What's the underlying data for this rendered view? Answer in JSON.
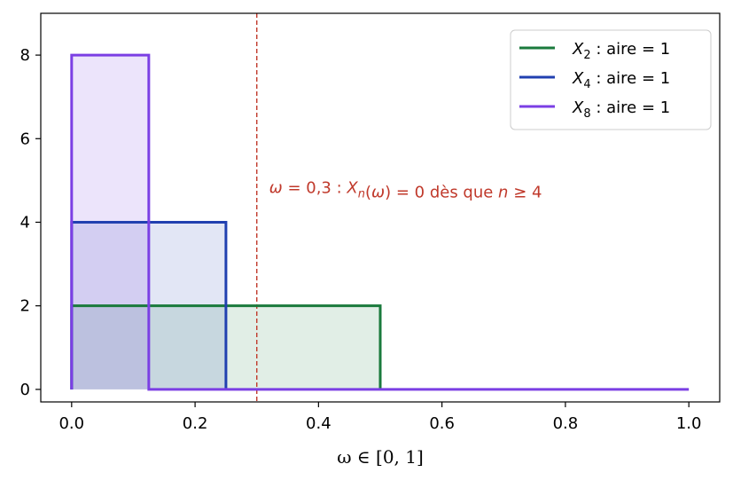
{
  "chart_data": {
    "type": "line",
    "title": "",
    "xlabel": "ω ∈ [0, 1]",
    "ylabel": "",
    "xlim": [
      -0.05,
      1.05
    ],
    "ylim": [
      -0.3,
      9.0
    ],
    "xticks": [
      0.0,
      0.2,
      0.4,
      0.6,
      0.8,
      1.0
    ],
    "xtick_labels": [
      "0.0",
      "0.2",
      "0.4",
      "0.6",
      "0.8",
      "1.0"
    ],
    "yticks": [
      0,
      2,
      4,
      6,
      8
    ],
    "ytick_labels": [
      "0",
      "2",
      "4",
      "6",
      "8"
    ],
    "grid": false,
    "legend_position": "top-right",
    "series": [
      {
        "name": "X2 : aire = 1",
        "legend": {
          "var": "X",
          "sub": "2",
          "rest": " : aire  = 1"
        },
        "color": "#1a7a3c",
        "fill_opacity": 0.13,
        "x": [
          0,
          0,
          0.5,
          0.5
        ],
        "y": [
          0,
          2,
          2,
          0
        ]
      },
      {
        "name": "X4 : aire = 1",
        "legend": {
          "var": "X",
          "sub": "4",
          "rest": " : aire  = 1"
        },
        "color": "#2140b0",
        "fill_opacity": 0.13,
        "x": [
          0,
          0,
          0.25,
          0.25
        ],
        "y": [
          0,
          4,
          4,
          0
        ]
      },
      {
        "name": "X8 : aire = 1",
        "legend": {
          "var": "X",
          "sub": "8",
          "rest": " : aire  = 1"
        },
        "color": "#7b3fe4",
        "fill_opacity": 0.14,
        "x": [
          0,
          0,
          0.125,
          0.125,
          1.0
        ],
        "y": [
          0,
          8,
          8,
          0,
          0
        ]
      }
    ],
    "vline": {
      "x": 0.3,
      "color": "#c0392b",
      "style": "dashed"
    },
    "annotation": {
      "x": 0.32,
      "y": 4.7,
      "color": "#c0392b",
      "text": "ω = 0,3 : Xn(ω) = 0 dès que n ≥ 4",
      "parts": [
        {
          "t": "ω",
          "style": "italic"
        },
        {
          "t": " = 0,3 : "
        },
        {
          "t": "X",
          "style": "italic"
        },
        {
          "t": "n",
          "style": "italic",
          "sub": true
        },
        {
          "t": "("
        },
        {
          "t": "ω",
          "style": "italic"
        },
        {
          "t": ") = 0 dès que "
        },
        {
          "t": "n",
          "style": "italic"
        },
        {
          "t": " ≥ 4"
        }
      ]
    }
  }
}
